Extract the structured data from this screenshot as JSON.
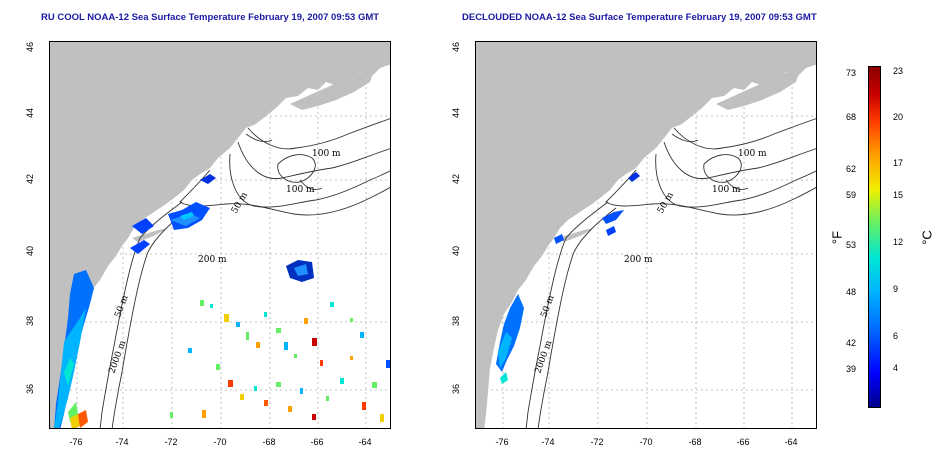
{
  "left_panel": {
    "title": "RU COOL NOAA-12 Sea Surface Temperature February 19, 2007 09:53 GMT",
    "contour_labels": [
      "100 m",
      "100 m",
      "50 m",
      "200 m",
      "50 m",
      "2000 m"
    ]
  },
  "right_panel": {
    "title": "DECLOUDED NOAA-12 Sea Surface Temperature February 19, 2007 09:53 GMT",
    "contour_labels": [
      "100 m",
      "100 m",
      "50 m",
      "200 m",
      "50 m",
      "2000 m"
    ]
  },
  "axes": {
    "lat_ticks": [
      "46",
      "44",
      "42",
      "40",
      "38",
      "36"
    ],
    "lon_ticks": [
      "-76",
      "-74",
      "-72",
      "-70",
      "-68",
      "-66",
      "-64"
    ]
  },
  "colorbar": {
    "fahrenheit_unit": "°F",
    "celsius_unit": "°C",
    "fahrenheit_ticks": [
      "73",
      "68",
      "62",
      "59",
      "53",
      "48",
      "42",
      "39"
    ],
    "celsius_ticks": [
      "23",
      "20",
      "17",
      "15",
      "12",
      "9",
      "6",
      "4"
    ],
    "colors": [
      "#00008b",
      "#0000ff",
      "#0064ff",
      "#00b4ff",
      "#00e6d2",
      "#64f064",
      "#f0f000",
      "#ffa000",
      "#ff3c00",
      "#c80000",
      "#8b0000"
    ]
  },
  "colors": {
    "land": "#c0c0c0",
    "title": "#1a1aa6",
    "grid": "#b0b0b0"
  }
}
